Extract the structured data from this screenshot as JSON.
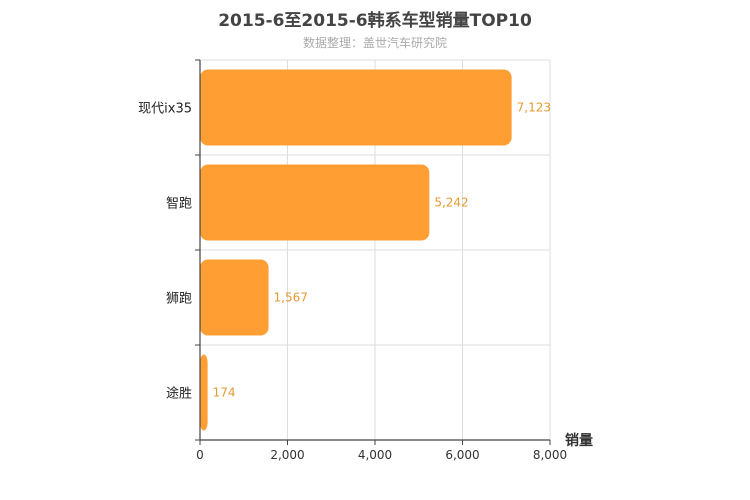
{
  "title": "2015-6至2015-6韩系车型销量TOP10",
  "subtitle": "数据整理：盖世汽车研究院",
  "chart_data": {
    "type": "bar",
    "orientation": "horizontal",
    "categories": [
      "现代ix35",
      "智跑",
      "狮跑",
      "途胜"
    ],
    "values": [
      7123,
      5242,
      1567,
      174
    ],
    "value_labels": [
      "7,123",
      "5,242",
      "1,567",
      "174"
    ],
    "xlabel": "销量",
    "ylabel": "",
    "xlim": [
      0,
      8000
    ],
    "xticks": [
      0,
      2000,
      4000,
      6000,
      8000
    ],
    "xtick_labels": [
      "0",
      "2,000",
      "4,000",
      "6,000",
      "8,000"
    ],
    "grid": true,
    "colors": {
      "bar": "#ff9e33",
      "label": "#e59a33",
      "grid": "#dddddd",
      "axis": "#444444"
    }
  }
}
